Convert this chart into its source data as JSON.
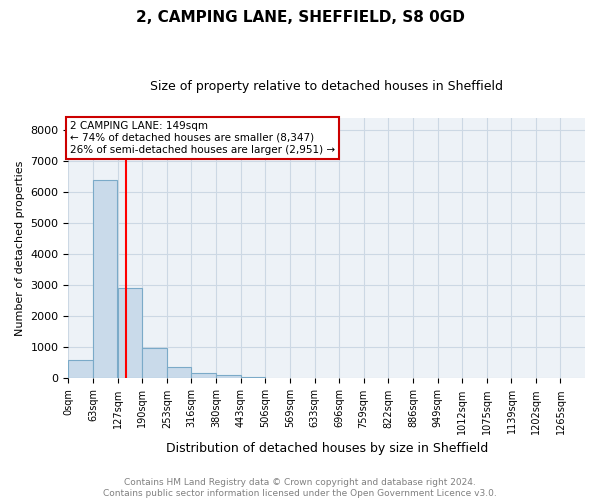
{
  "title": "2, CAMPING LANE, SHEFFIELD, S8 0GD",
  "subtitle": "Size of property relative to detached houses in Sheffield",
  "xlabel": "Distribution of detached houses by size in Sheffield",
  "ylabel": "Number of detached properties",
  "footer": "Contains HM Land Registry data © Crown copyright and database right 2024.\nContains public sector information licensed under the Open Government Licence v3.0.",
  "bin_labels": [
    "0sqm",
    "63sqm",
    "127sqm",
    "190sqm",
    "253sqm",
    "316sqm",
    "380sqm",
    "443sqm",
    "506sqm",
    "569sqm",
    "633sqm",
    "696sqm",
    "759sqm",
    "822sqm",
    "886sqm",
    "949sqm",
    "1012sqm",
    "1075sqm",
    "1139sqm",
    "1202sqm",
    "1265sqm"
  ],
  "bar_values": [
    580,
    6400,
    2900,
    980,
    360,
    160,
    100,
    60,
    0,
    0,
    0,
    0,
    0,
    0,
    0,
    0,
    0,
    0,
    0,
    0
  ],
  "bar_color": "#c9daea",
  "bar_edge_color": "#7baac8",
  "ylim": [
    0,
    8400
  ],
  "yticks": [
    0,
    1000,
    2000,
    3000,
    4000,
    5000,
    6000,
    7000,
    8000
  ],
  "red_line_x": 149,
  "bin_width": 63,
  "annotation_text": "2 CAMPING LANE: 149sqm\n← 74% of detached houses are smaller (8,347)\n26% of semi-detached houses are larger (2,951) →",
  "annotation_box_color": "#cc0000",
  "grid_color": "#ccd8e4",
  "bg_color": "#edf2f7",
  "title_fontsize": 11,
  "subtitle_fontsize": 9,
  "ylabel_fontsize": 8,
  "xlabel_fontsize": 9,
  "tick_fontsize": 7,
  "annotation_fontsize": 7.5,
  "footer_fontsize": 6.5
}
